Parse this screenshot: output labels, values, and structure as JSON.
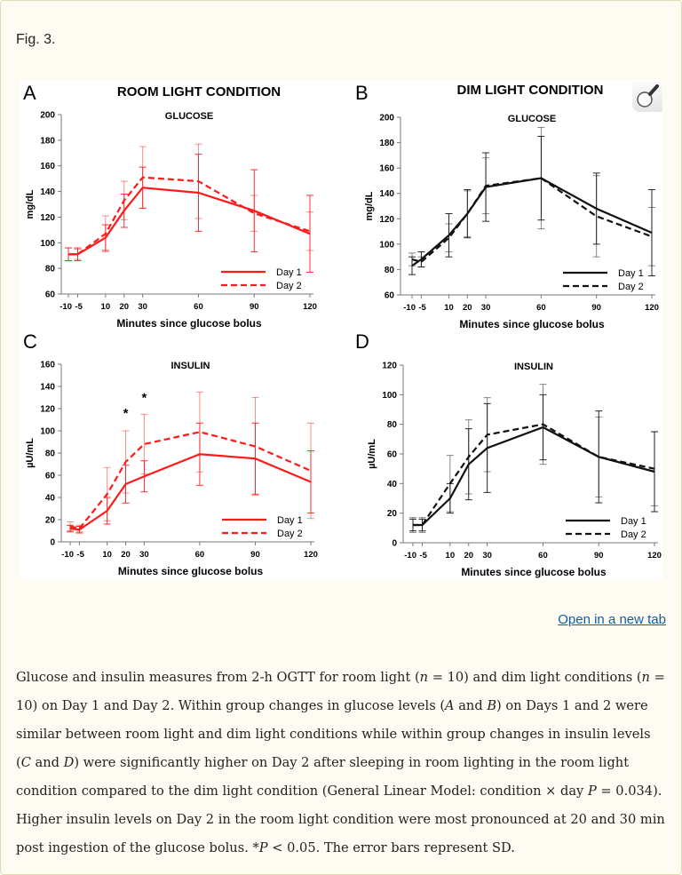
{
  "figure_label": "Fig. 3.",
  "open_link": "Open in a new tab",
  "icons": {
    "zoom": "magnifier-icon"
  },
  "caption": [
    {
      "t": "Glucose and insulin measures from 2-h OGTT for room light ("
    },
    {
      "t": "n",
      "i": true
    },
    {
      "t": " = 10) and dim light conditions ("
    },
    {
      "t": "n",
      "i": true
    },
    {
      "t": " = 10) on Day 1 and Day 2. Within group changes in glucose levels ("
    },
    {
      "t": "A",
      "i": true
    },
    {
      "t": " and "
    },
    {
      "t": "B",
      "i": true
    },
    {
      "t": ") on Days 1 and 2 were similar between room light and dim light conditions while within group changes in insulin levels ("
    },
    {
      "t": "C",
      "i": true
    },
    {
      "t": " and "
    },
    {
      "t": "D",
      "i": true
    },
    {
      "t": ") were significantly higher on Day 2 after sleeping in room lighting in the room light condition compared to the dim light condition (General Linear Model: condition × day "
    },
    {
      "t": "P",
      "i": true
    },
    {
      "t": " = 0.034). Higher insulin levels on Day 2 in the room light condition were most pronounced at 20 and 30 min post ingestion of the glucose bolus. *"
    },
    {
      "t": "P",
      "i": true
    },
    {
      "t": " < 0.05. The error bars represent SD."
    }
  ],
  "chart_data": [
    {
      "panel": "A",
      "type": "line",
      "title": "ROOM LIGHT CONDITION",
      "subtitle": "GLUCOSE",
      "xlabel": "Minutes since glucose bolus",
      "ylabel": "mg/dL",
      "x": [
        -10,
        -5,
        10,
        20,
        30,
        60,
        90,
        120
      ],
      "xticks": [
        "-10",
        "-5",
        "10",
        "20",
        "30",
        "60",
        "90",
        "120"
      ],
      "ylim": [
        60,
        200
      ],
      "yticks": [
        60,
        80,
        100,
        120,
        140,
        160,
        180,
        200
      ],
      "color": "#ff1a1a",
      "grid": false,
      "legend": "bottom-right",
      "error_bars": "SD",
      "series": [
        {
          "name": "Day 1",
          "style": "solid",
          "values": [
            91,
            91,
            104,
            125,
            143,
            139,
            125,
            107
          ],
          "sd": [
            5,
            5,
            10,
            13,
            16,
            30,
            32,
            30
          ]
        },
        {
          "name": "Day 2",
          "style": "dashed",
          "values": [
            91,
            91,
            107,
            133,
            151,
            148,
            123,
            109
          ],
          "sd": [
            5,
            4,
            14,
            15,
            24,
            29,
            14,
            15
          ]
        }
      ],
      "annotations": []
    },
    {
      "panel": "B",
      "type": "line",
      "title": "DIM LIGHT CONDITION",
      "subtitle": "GLUCOSE",
      "xlabel": "Minutes since glucose bolus",
      "ylabel": "mg/dL",
      "x": [
        -10,
        -5,
        10,
        20,
        30,
        60,
        90,
        120
      ],
      "xticks": [
        "-10",
        "-5",
        "10",
        "20",
        "30",
        "60",
        "90",
        "120"
      ],
      "ylim": [
        60,
        200
      ],
      "yticks": [
        60,
        80,
        100,
        120,
        140,
        160,
        180,
        200
      ],
      "color": "#111111",
      "grid": false,
      "legend": "bottom-right",
      "error_bars": "SD",
      "series": [
        {
          "name": "Day 1",
          "style": "solid",
          "values": [
            83,
            88,
            107,
            124,
            145,
            152,
            128,
            109
          ],
          "sd": [
            7,
            6,
            17,
            19,
            27,
            33,
            28,
            34
          ]
        },
        {
          "name": "Day 2",
          "style": "dashed",
          "values": [
            88,
            86,
            105,
            124,
            146,
            152,
            122,
            106
          ],
          "sd": [
            5,
            4,
            11,
            18,
            22,
            40,
            32,
            23
          ]
        }
      ],
      "annotations": []
    },
    {
      "panel": "C",
      "type": "line",
      "title": "",
      "subtitle": "INSULIN",
      "xlabel": "Minutes since glucose bolus",
      "ylabel": "µU/mL",
      "x": [
        -10,
        -5,
        10,
        20,
        30,
        60,
        90,
        120
      ],
      "xticks": [
        "-10",
        "-5",
        "10",
        "20",
        "30",
        "60",
        "90",
        "120"
      ],
      "ylim": [
        0,
        160
      ],
      "yticks": [
        0,
        20,
        40,
        60,
        80,
        100,
        120,
        140,
        160
      ],
      "color": "#ff1a1a",
      "grid": false,
      "legend": "bottom-right",
      "error_bars": "SD",
      "series": [
        {
          "name": "Day 1",
          "style": "solid",
          "values": [
            12,
            11,
            28,
            52,
            59,
            79,
            75,
            54
          ],
          "sd": [
            3,
            3,
            12,
            17,
            14,
            28,
            32,
            28
          ]
        },
        {
          "name": "Day 2",
          "style": "dashed",
          "values": [
            14,
            12,
            43,
            72,
            88,
            99,
            86,
            64
          ],
          "sd": [
            4,
            3,
            24,
            28,
            27,
            36,
            44,
            43
          ]
        }
      ],
      "annotations": [
        {
          "text": "*",
          "x": 20,
          "y": 112
        },
        {
          "text": "*",
          "x": 30,
          "y": 126
        }
      ]
    },
    {
      "panel": "D",
      "type": "line",
      "title": "",
      "subtitle": "INSULIN",
      "xlabel": "Minutes since glucose bolus",
      "ylabel": "µU/mL",
      "x": [
        -10,
        -5,
        10,
        20,
        30,
        60,
        90,
        120
      ],
      "xticks": [
        "-10",
        "-5",
        "10",
        "20",
        "30",
        "60",
        "90",
        "120"
      ],
      "ylim": [
        0,
        120
      ],
      "yticks": [
        0,
        20,
        40,
        60,
        80,
        100,
        120
      ],
      "color": "#111111",
      "grid": false,
      "legend": "bottom-right",
      "error_bars": "SD",
      "series": [
        {
          "name": "Day 1",
          "style": "solid",
          "values": [
            12,
            12,
            30,
            53,
            64,
            78,
            58,
            48
          ],
          "sd": [
            4,
            4,
            10,
            24,
            30,
            22,
            31,
            27
          ]
        },
        {
          "name": "Day 2",
          "style": "dashed",
          "values": [
            12,
            12,
            40,
            58,
            73,
            80,
            58,
            50
          ],
          "sd": [
            5,
            5,
            19,
            25,
            25,
            27,
            27,
            25
          ]
        }
      ],
      "annotations": []
    }
  ]
}
